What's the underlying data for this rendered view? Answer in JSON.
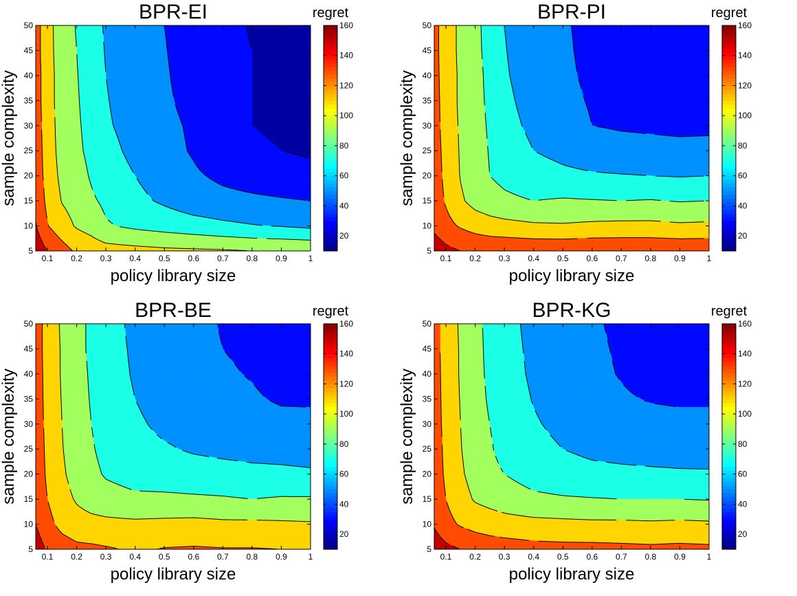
{
  "chart_data": [
    {
      "type": "contour",
      "title": "BPR-EI",
      "xlabel": "policy library size",
      "ylabel": "sample complexity",
      "colorbar_label": "regret",
      "xlim": [
        0.06,
        1.0
      ],
      "ylim": [
        5,
        50
      ],
      "clim": [
        10,
        160
      ],
      "x_ticks": [
        "0.1",
        "0.2",
        "0.3",
        "0.4",
        "0.5",
        "0.6",
        "0.7",
        "0.8",
        "0.9",
        "1"
      ],
      "y_ticks": [
        "5",
        "10",
        "15",
        "20",
        "25",
        "30",
        "35",
        "40",
        "45",
        "50"
      ],
      "colorbar_ticks": [
        "20",
        "40",
        "60",
        "80",
        "100",
        "120",
        "140",
        "160"
      ],
      "contour_levels": [
        20,
        40,
        60,
        80,
        100,
        120,
        140,
        160
      ],
      "grid_x": [
        0.06,
        0.1,
        0.15,
        0.2,
        0.25,
        0.3,
        0.4,
        0.5,
        0.6,
        0.7,
        0.8,
        0.9,
        1.0
      ],
      "grid_y": [
        5,
        10,
        15,
        20,
        25,
        30,
        35,
        40,
        45,
        50
      ],
      "regret_rows": [
        [
          153,
          140,
          128,
          117,
          112,
          108,
          106,
          104,
          103,
          102,
          100,
          99,
          98
        ],
        [
          141,
          121,
          108,
          98,
          92,
          82,
          76,
          72,
          68,
          64,
          61,
          59,
          56
        ],
        [
          136,
          115,
          99,
          92,
          83,
          76,
          65,
          57,
          49,
          46,
          44,
          42,
          40
        ],
        [
          133,
          112,
          95,
          88,
          78,
          68,
          60,
          50,
          43,
          36,
          31,
          27,
          24
        ],
        [
          131,
          111,
          92,
          84,
          75,
          65,
          56,
          47,
          38,
          24,
          22,
          20,
          18
        ],
        [
          130,
          110,
          91,
          83,
          73,
          62,
          54,
          45,
          37,
          23,
          20,
          18,
          16
        ],
        [
          129,
          109,
          90,
          82,
          71,
          61,
          52,
          43,
          34,
          26,
          20,
          17,
          15
        ],
        [
          129,
          109,
          90,
          81,
          70,
          60,
          51,
          42,
          32,
          25,
          20,
          16,
          14
        ],
        [
          128,
          108,
          89,
          80,
          68,
          59,
          50,
          41,
          31,
          24,
          20,
          15,
          12
        ],
        [
          128,
          108,
          88,
          79,
          67,
          58,
          49,
          40,
          31,
          24,
          19,
          15,
          10
        ]
      ]
    },
    {
      "type": "contour",
      "title": "BPR-PI",
      "xlabel": "policy library size",
      "ylabel": "sample complexity",
      "colorbar_label": "regret",
      "xlim": [
        0.06,
        1.0
      ],
      "ylim": [
        5,
        50
      ],
      "clim": [
        10,
        160
      ],
      "x_ticks": [
        "0.1",
        "0.2",
        "0.3",
        "0.4",
        "0.5",
        "0.6",
        "0.7",
        "0.8",
        "0.9",
        "1"
      ],
      "y_ticks": [
        "5",
        "10",
        "15",
        "20",
        "25",
        "30",
        "35",
        "40",
        "45",
        "50"
      ],
      "colorbar_ticks": [
        "20",
        "40",
        "60",
        "80",
        "100",
        "120",
        "140",
        "160"
      ],
      "contour_levels": [
        20,
        40,
        60,
        80,
        100,
        120,
        140,
        160
      ],
      "grid_x": [
        0.06,
        0.1,
        0.15,
        0.2,
        0.25,
        0.3,
        0.4,
        0.5,
        0.6,
        0.7,
        0.8,
        0.9,
        1.0
      ],
      "grid_y": [
        5,
        10,
        15,
        20,
        25,
        30,
        35,
        40,
        45,
        50
      ],
      "regret_rows": [
        [
          152,
          145,
          140,
          138,
          137,
          137,
          136,
          136,
          137,
          137,
          137,
          136,
          136
        ],
        [
          135,
          126,
          118,
          112,
          108,
          106,
          103,
          102,
          104,
          105,
          105,
          103,
          104
        ],
        [
          130,
          118,
          103,
          93,
          88,
          84,
          80,
          82,
          81,
          80,
          81,
          79,
          80
        ],
        [
          128,
          116,
          99,
          88,
          80,
          75,
          68,
          64,
          62,
          61,
          60,
          59,
          60
        ],
        [
          127,
          115,
          98,
          87,
          79,
          70,
          60,
          55,
          50,
          47,
          46,
          45,
          46
        ],
        [
          126,
          114,
          97,
          86,
          78,
          66,
          56,
          50,
          40,
          38,
          37,
          36,
          36
        ],
        [
          126,
          113,
          96,
          85,
          77,
          64,
          53,
          46,
          38,
          34,
          32,
          30,
          30
        ],
        [
          125,
          113,
          96,
          85,
          76,
          62,
          51,
          44,
          36,
          32,
          27,
          25,
          26
        ],
        [
          125,
          112,
          95,
          84,
          75,
          61,
          49,
          43,
          35,
          30,
          25,
          22,
          23
        ],
        [
          125,
          112,
          95,
          84,
          74,
          60,
          48,
          42,
          35,
          30,
          24,
          20,
          21
        ]
      ]
    },
    {
      "type": "contour",
      "title": "BPR-BE",
      "xlabel": "policy library size",
      "ylabel": "sample complexity",
      "colorbar_label": "regret",
      "xlim": [
        0.06,
        1.0
      ],
      "ylim": [
        5,
        50
      ],
      "clim": [
        10,
        160
      ],
      "x_ticks": [
        "0.1",
        "0.2",
        "0.3",
        "0.4",
        "0.5",
        "0.6",
        "0.7",
        "0.8",
        "0.9",
        "1"
      ],
      "y_ticks": [
        "5",
        "10",
        "15",
        "20",
        "25",
        "30",
        "35",
        "40",
        "45",
        "50"
      ],
      "colorbar_ticks": [
        "20",
        "40",
        "60",
        "80",
        "100",
        "120",
        "140",
        "160"
      ],
      "contour_levels": [
        20,
        40,
        60,
        80,
        100,
        120,
        140,
        160
      ],
      "grid_x": [
        0.06,
        0.1,
        0.15,
        0.2,
        0.25,
        0.3,
        0.4,
        0.5,
        0.6,
        0.7,
        0.8,
        0.9,
        1.0
      ],
      "grid_y": [
        5,
        10,
        15,
        20,
        25,
        30,
        35,
        40,
        45,
        50
      ],
      "regret_rows": [
        [
          150,
          138,
          130,
          125,
          124,
          122,
          118,
          121,
          122,
          121,
          121,
          120,
          119
        ],
        [
          140,
          126,
          114,
          108,
          106,
          105,
          104,
          105,
          106,
          104,
          104,
          103,
          102
        ],
        [
          134,
          120,
          107,
          98,
          92,
          88,
          84,
          84,
          83,
          82,
          80,
          82,
          82
        ],
        [
          132,
          117,
          103,
          92,
          85,
          78,
          72,
          70,
          68,
          66,
          64,
          63,
          62
        ],
        [
          131,
          116,
          101,
          89,
          82,
          74,
          66,
          62,
          58,
          56,
          55,
          55,
          54
        ],
        [
          130,
          115,
          100,
          87,
          80,
          72,
          63,
          56,
          52,
          48,
          47,
          45,
          44
        ],
        [
          130,
          114,
          99,
          86,
          79,
          70,
          60,
          52,
          48,
          44,
          42,
          38,
          38
        ],
        [
          129,
          114,
          98,
          86,
          78,
          69,
          58,
          50,
          46,
          42,
          39,
          34,
          34
        ],
        [
          129,
          113,
          98,
          85,
          77,
          68,
          57,
          49,
          45,
          40,
          37,
          33,
          32
        ],
        [
          129,
          113,
          97,
          85,
          77,
          67,
          56,
          48,
          44,
          39,
          36,
          32,
          30
        ]
      ]
    },
    {
      "type": "contour",
      "title": "BPR-KG",
      "xlabel": "policy library size",
      "ylabel": "sample complexity",
      "colorbar_label": "regret",
      "xlim": [
        0.06,
        1.0
      ],
      "ylim": [
        5,
        50
      ],
      "clim": [
        10,
        160
      ],
      "x_ticks": [
        "0.1",
        "0.2",
        "0.3",
        "0.4",
        "0.5",
        "0.6",
        "0.7",
        "0.8",
        "0.9",
        "1"
      ],
      "y_ticks": [
        "5",
        "10",
        "15",
        "20",
        "25",
        "30",
        "35",
        "40",
        "45",
        "50"
      ],
      "colorbar_ticks": [
        "20",
        "40",
        "60",
        "80",
        "100",
        "120",
        "140",
        "160"
      ],
      "contour_levels": [
        20,
        40,
        60,
        80,
        100,
        120,
        140,
        160
      ],
      "grid_x": [
        0.06,
        0.1,
        0.15,
        0.2,
        0.25,
        0.3,
        0.4,
        0.5,
        0.6,
        0.7,
        0.8,
        0.9,
        1.0
      ],
      "grid_y": [
        5,
        10,
        15,
        20,
        25,
        30,
        35,
        40,
        45,
        50
      ],
      "regret_rows": [
        [
          152,
          145,
          140,
          135,
          132,
          130,
          127,
          126,
          126,
          125,
          124,
          125,
          124
        ],
        [
          138,
          126,
          118,
          113,
          110,
          108,
          106,
          105,
          104,
          104,
          103,
          104,
          103
        ],
        [
          132,
          120,
          108,
          98,
          94,
          90,
          84,
          82,
          81,
          80,
          80,
          80,
          79
        ],
        [
          130,
          117,
          103,
          92,
          85,
          80,
          72,
          68,
          65,
          64,
          63,
          62,
          62
        ],
        [
          129,
          116,
          101,
          89,
          82,
          74,
          66,
          60,
          56,
          54,
          53,
          53,
          52
        ],
        [
          128,
          115,
          100,
          87,
          80,
          72,
          62,
          55,
          50,
          46,
          45,
          44,
          44
        ],
        [
          128,
          114,
          99,
          86,
          78,
          70,
          59,
          51,
          46,
          42,
          39,
          38,
          38
        ],
        [
          127,
          114,
          98,
          85,
          77,
          68,
          57,
          49,
          44,
          39,
          34,
          33,
          34
        ],
        [
          127,
          113,
          98,
          85,
          76,
          67,
          56,
          48,
          43,
          38,
          32,
          29,
          30
        ],
        [
          127,
          113,
          97,
          84,
          76,
          66,
          55,
          47,
          42,
          37,
          31,
          27,
          28
        ]
      ]
    }
  ]
}
